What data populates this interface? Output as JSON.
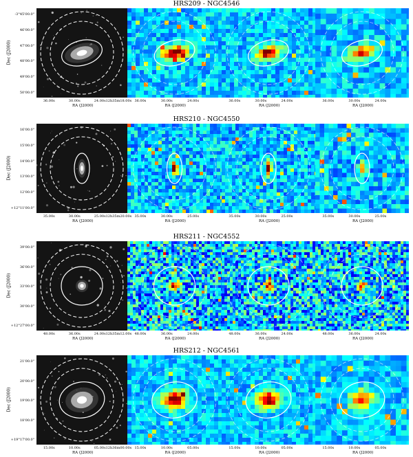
{
  "rows": [
    {
      "title": "HRS209 - NGC4546",
      "ylabel": "Dec (J2000)",
      "yticks": [
        "-3°45'00.0\"",
        "46'00.0\"",
        "47'00.0\"",
        "48'00.0\"",
        "49'00.0\"",
        "50'00.0\""
      ],
      "xticks_first": [
        "36.00s",
        "30.00s",
        "24.00s12h35m18.00s"
      ],
      "xticks_maps": [
        "36.00s",
        "30.00s",
        "24.00s"
      ],
      "xlabel": "RA (J2000)"
    },
    {
      "title": "HRS210 - NGC4550",
      "ylabel": "Dec (J2000)",
      "yticks": [
        "16'00.0\"",
        "15'00.0\"",
        "14'00.0\"",
        "13'00.0\"",
        "12'00.0\"",
        "+12°11'00.0\""
      ],
      "xticks_first": [
        "35.00s",
        "30.00s",
        "25.00s12h35m20.00s"
      ],
      "xticks_maps": [
        "35.00s",
        "30.00s",
        "25.00s"
      ],
      "xlabel": "RA (J2000)"
    },
    {
      "title": "HRS211 - NGC4552",
      "ylabel": "Dec (J2000)",
      "yticks": [
        "39'00.0\"",
        "36'00.0\"",
        "33'00.0\"",
        "30'00.0\"",
        "+12°27'00.0\""
      ],
      "xticks_first": [
        "48.00s",
        "36.00s",
        "24.00s12h35m12.00s"
      ],
      "xticks_maps": [
        "48.00s",
        "36.00s",
        "24.00s"
      ],
      "xlabel": "RA (J2000)"
    },
    {
      "title": "HRS212 - NGC4561",
      "ylabel": "Dec (J2000)",
      "yticks": [
        "21'00.0\"",
        "20'00.0\"",
        "19'00.0\"",
        "18'00.0\"",
        "+19°17'00.0\""
      ],
      "xticks_first": [
        "15.00s",
        "10.00s",
        "05.00s12h36m00.00s"
      ],
      "xticks_maps": [
        "15.00s",
        "10.00s",
        "05.00s"
      ],
      "xlabel": "RA (J2000)"
    }
  ]
}
